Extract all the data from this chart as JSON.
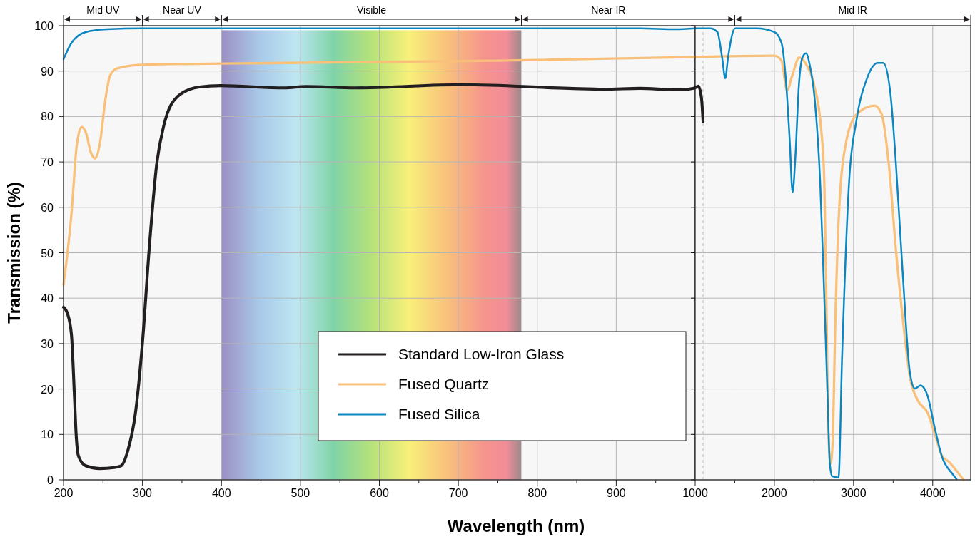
{
  "chart_data": [
    {
      "type": "line",
      "ylabel": "Transmission (%)",
      "xlabel": "Wavelength (nm)",
      "marker": "none",
      "xlim": [
        200,
        1000
      ],
      "ylim": [
        0,
        100
      ],
      "xticks": [
        200,
        {
          "value": 250,
          "label": null
        },
        300,
        {
          "value": 350,
          "label": null
        },
        400,
        {
          "value": 450,
          "label": null
        },
        500,
        {
          "value": 550,
          "label": null
        },
        600,
        {
          "value": 650,
          "label": null
        },
        700,
        {
          "value": 750,
          "label": null
        },
        800,
        {
          "value": 850,
          "label": null
        },
        900,
        {
          "value": 950,
          "label": null
        },
        1000
      ],
      "yticks": [
        0,
        10,
        20,
        30,
        40,
        50,
        60,
        70,
        80,
        90,
        100
      ],
      "grid": true,
      "legend": "bottom",
      "line_style": "solid",
      "bands": [
        {
          "axis": "x",
          "from": 200,
          "to": 300,
          "label": "Mid UV",
          "color": "#f7f7f7"
        },
        {
          "axis": "x",
          "from": 300,
          "to": 400,
          "label": "Near UV",
          "color": "#f7f7f7"
        },
        {
          "axis": "x",
          "from": 400,
          "to": 780,
          "label": "Visible",
          "color": "#f28c98"
        },
        {
          "axis": "x",
          "from": 780,
          "to": 1000,
          "label": "Near IR",
          "color": "#f7f7f7"
        }
      ],
      "series": [
        {
          "name": "Standard Low-Iron Glass",
          "color": "#231f20",
          "x": [
            200,
            205,
            210,
            214,
            216,
            219,
            228,
            246,
            264,
            273,
            282,
            291,
            300,
            309,
            318,
            327,
            345,
            372,
            399,
            480,
            507,
            570,
            705,
            840,
            885,
            930,
            975,
            990,
            1000
          ],
          "values": [
            38,
            36.6,
            32,
            17.7,
            9.9,
            5.2,
            3.1,
            2.5,
            2.7,
            3.1,
            6.8,
            14.6,
            30.3,
            52,
            69.5,
            78,
            84.5,
            86.5,
            86.8,
            86.3,
            86.6,
            86.3,
            87,
            86.2,
            86,
            86.2,
            85.9,
            86,
            86.3
          ]
        },
        {
          "name": "Fused Quartz",
          "color": "#f9c07a",
          "x": [
            200,
            205,
            210,
            217,
            223,
            228,
            235,
            240,
            246,
            253,
            259,
            268,
            300,
            480,
            750,
            1000
          ],
          "values": [
            42.9,
            50,
            58.5,
            74,
            77.7,
            76.6,
            71.9,
            70.8,
            74,
            83.7,
            89,
            90.6,
            91.4,
            91.8,
            92.3,
            93.1
          ]
        },
        {
          "name": "Fused Silica",
          "color": "#0a86c0",
          "x": [
            200,
            210,
            228,
            255,
            300,
            930,
            975,
            1000
          ],
          "values": [
            92.6,
            96.2,
            98.6,
            99.2,
            99.4,
            99.4,
            99.2,
            99.4
          ]
        }
      ]
    },
    {
      "type": "line",
      "marker": "none",
      "xlim": [
        1000,
        4480
      ],
      "ylim": [
        0,
        100
      ],
      "tick_labels": "x",
      "xticks": [
        {
          "value": 1500,
          "label": null
        },
        2000,
        {
          "value": 2500,
          "label": null
        },
        3000,
        {
          "value": 3500,
          "label": null
        },
        4000
      ],
      "yticks": [
        0,
        10,
        20,
        30,
        40,
        50,
        60,
        70,
        80,
        90,
        100
      ],
      "grid": true,
      "line_style": "solid",
      "bands": [
        {
          "axis": "x",
          "from": 1000,
          "to": 1500,
          "color": "#f7f7f7"
        },
        {
          "axis": "x",
          "from": 1500,
          "to": 4480,
          "label": "Mid IR",
          "color": "#f7f7f7"
        }
      ],
      "ref_lines": [
        {
          "axis": "x",
          "value": 1100,
          "line_style": "dashed",
          "color": "#bbbbbb"
        }
      ],
      "series": [
        {
          "color": "#231f20",
          "x": [
            1000,
            1040,
            1080,
            1100
          ],
          "values": [
            86.3,
            86.7,
            84,
            78.8
          ]
        },
        {
          "color": "#f9c07a",
          "x": [
            1000,
            2000,
            2090,
            2160,
            2225,
            2315,
            2390,
            2500,
            2590,
            2630,
            2660,
            2680,
            2710,
            2735,
            2770,
            2815,
            2905,
            3040,
            3265,
            3355,
            3445,
            3535,
            3625,
            3715,
            3805,
            3940,
            4030,
            4120,
            4210,
            4300,
            4390
          ],
          "values": [
            93.1,
            93.4,
            92.3,
            85.7,
            89,
            93,
            91.8,
            87,
            77.4,
            66,
            35,
            11.5,
            3.6,
            8,
            35,
            58.5,
            74.3,
            80.5,
            82.4,
            80.5,
            69.5,
            50.7,
            35,
            22.4,
            17.7,
            14.6,
            9.9,
            5.2,
            3.9,
            2,
            0
          ]
        },
        {
          "color": "#0a86c0",
          "x": [
            1000,
            1190,
            1280,
            1340,
            1380,
            1415,
            1505,
            1775,
            2000,
            2090,
            2150,
            2195,
            2230,
            2265,
            2310,
            2355,
            2400,
            2445,
            2510,
            2580,
            2625,
            2670,
            2700,
            2730,
            2810,
            2855,
            2945,
            3035,
            3170,
            3305,
            3375,
            3465,
            3530,
            3620,
            3710,
            3775,
            3845,
            3935,
            4025,
            4115,
            4250,
            4300
          ],
          "values": [
            99.4,
            99.4,
            98.6,
            93,
            88.4,
            93,
            99.4,
            99.4,
            98.6,
            96.2,
            87,
            74.3,
            63.3,
            71,
            87,
            93,
            93.9,
            91.5,
            83.7,
            64.8,
            42.9,
            19.3,
            3.6,
            0.8,
            0.5,
            27,
            66,
            79,
            88.4,
            91.8,
            91.8,
            85.2,
            71,
            45.8,
            23.9,
            20.1,
            20.8,
            18.5,
            11.5,
            5.2,
            1.3,
            0.2
          ]
        }
      ]
    }
  ]
}
